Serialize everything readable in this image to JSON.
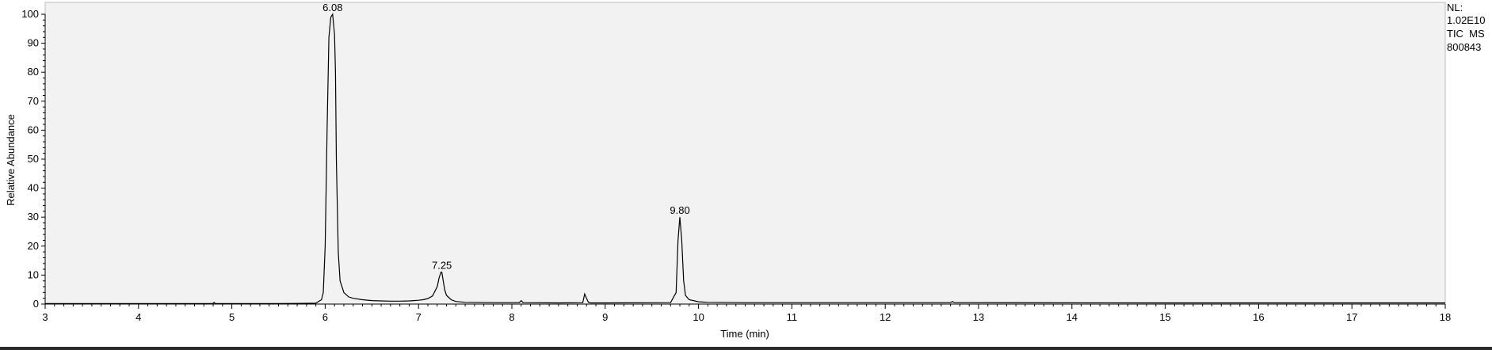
{
  "chart_data": {
    "type": "line",
    "xlabel": "Time (min)",
    "ylabel": "Relative Abundance",
    "xlim": [
      3,
      18
    ],
    "ylim": [
      0,
      100
    ],
    "x_ticks": [
      3,
      4,
      5,
      6,
      7,
      8,
      9,
      10,
      11,
      12,
      13,
      14,
      15,
      16,
      17,
      18
    ],
    "y_ticks": [
      0,
      10,
      20,
      30,
      40,
      50,
      60,
      70,
      80,
      90,
      100
    ],
    "grid": false,
    "plot_background": "#f2f2f2",
    "line_color": "#000000",
    "peak_labels": [
      {
        "label": "6.08",
        "x": 6.08,
        "y": 100
      },
      {
        "label": "7.25",
        "x": 7.25,
        "y": 11
      },
      {
        "label": "9.80",
        "x": 9.8,
        "y": 30
      }
    ],
    "series": [
      {
        "x": [
          3.0,
          4.0,
          4.8,
          4.81,
          4.82,
          5.5,
          5.9,
          5.96,
          5.98,
          6.0,
          6.02,
          6.04,
          6.06,
          6.08,
          6.1,
          6.11,
          6.12,
          6.14,
          6.16,
          6.2,
          6.25,
          6.3,
          6.4,
          6.5,
          6.6,
          6.7,
          6.8,
          6.9,
          6.95,
          7.0,
          7.05,
          7.1,
          7.15,
          7.2,
          7.22,
          7.24,
          7.25,
          7.26,
          7.28,
          7.3,
          7.35,
          7.4,
          7.5,
          7.8,
          8.08,
          8.1,
          8.12,
          8.5,
          8.76,
          8.78,
          8.8,
          8.82,
          8.84,
          9.0,
          9.7,
          9.76,
          9.78,
          9.8,
          9.82,
          9.84,
          9.86,
          9.9,
          10.0,
          10.1,
          10.5,
          12.7,
          12.72,
          12.74,
          15.0,
          18.0
        ],
        "y": [
          0.2,
          0.2,
          0.2,
          0.6,
          0.2,
          0.2,
          0.3,
          1.5,
          4,
          20,
          60,
          92,
          99,
          100,
          93,
          80,
          50,
          18,
          8,
          4,
          2.5,
          2,
          1.5,
          1.2,
          1.1,
          1.0,
          1.0,
          1.1,
          1.2,
          1.3,
          1.5,
          1.9,
          2.8,
          6,
          9,
          11,
          11,
          9,
          5,
          3,
          1.5,
          0.9,
          0.6,
          0.5,
          0.5,
          1.2,
          0.5,
          0.4,
          0.5,
          3.5,
          2,
          0.6,
          0.4,
          0.4,
          0.5,
          4,
          22,
          30,
          22,
          8,
          3,
          1.5,
          0.8,
          0.6,
          0.5,
          0.5,
          0.9,
          0.5,
          0.4,
          0.4
        ]
      }
    ]
  },
  "info": {
    "nl_label": "NL:",
    "nl_value": "1.02E10",
    "scan_type": "TIC  MS",
    "file_name": "800843"
  }
}
